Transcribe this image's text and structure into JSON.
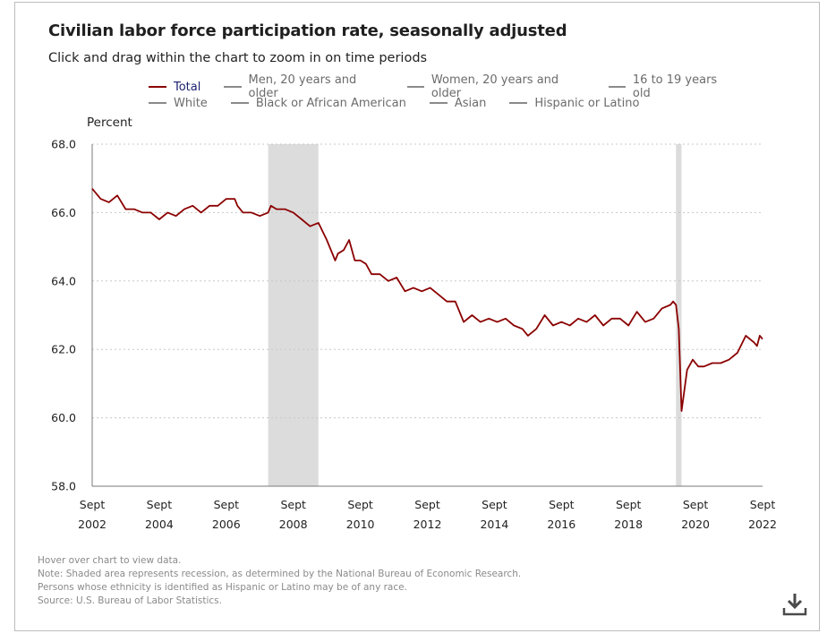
{
  "header": {
    "title": "Civilian labor force participation rate, seasonally adjusted",
    "subtitle": "Click and drag within the chart to zoom in on time periods"
  },
  "legend": {
    "items": [
      {
        "label": "Total",
        "active": true
      },
      {
        "label": "Men, 20 years and older",
        "active": false
      },
      {
        "label": "Women, 20 years and older",
        "active": false
      },
      {
        "label": "16 to 19 years old",
        "active": false
      },
      {
        "label": "White",
        "active": false
      },
      {
        "label": "Black or African American",
        "active": false
      },
      {
        "label": "Asian",
        "active": false
      },
      {
        "label": "Hispanic or Latino",
        "active": false
      }
    ]
  },
  "notes": {
    "hover": "Hover over chart to view data.",
    "shading": "Note: Shaded area represents recession, as determined by the National Bureau of Economic Research.",
    "ethnicity": "Persons whose ethnicity is identified as Hispanic or Latino may be of any race.",
    "source": "Source: U.S. Bureau of Labor Statistics."
  },
  "icons": {
    "download": "download-icon"
  },
  "colors": {
    "series": "#8b0000",
    "recession": "#dcdcdc",
    "grid": "#c8c8c8",
    "legend_active_text": "#1a1f6e"
  },
  "chart_data": {
    "type": "line",
    "title": "Civilian labor force participation rate, seasonally adjusted",
    "ylabel": "Percent",
    "ylim": [
      58.0,
      68.0
    ],
    "yticks": [
      "58.0",
      "60.0",
      "62.0",
      "64.0",
      "66.0",
      "68.0"
    ],
    "xlim": [
      "2002-09",
      "2022-09"
    ],
    "xticks": [
      {
        "month": "Sept",
        "year": "2002",
        "date": "2002-09"
      },
      {
        "month": "Sept",
        "year": "2004",
        "date": "2004-09"
      },
      {
        "month": "Sept",
        "year": "2006",
        "date": "2006-09"
      },
      {
        "month": "Sept",
        "year": "2008",
        "date": "2008-09"
      },
      {
        "month": "Sept",
        "year": "2010",
        "date": "2010-09"
      },
      {
        "month": "Sept",
        "year": "2012",
        "date": "2012-09"
      },
      {
        "month": "Sept",
        "year": "2014",
        "date": "2014-09"
      },
      {
        "month": "Sept",
        "year": "2016",
        "date": "2016-09"
      },
      {
        "month": "Sept",
        "year": "2018",
        "date": "2018-09"
      },
      {
        "month": "Sept",
        "year": "2020",
        "date": "2020-09"
      },
      {
        "month": "Sept",
        "year": "2022",
        "date": "2022-09"
      }
    ],
    "grid": true,
    "legend_position": "top",
    "recessions": [
      {
        "start": "2007-12",
        "end": "2009-06"
      },
      {
        "start": "2020-02",
        "end": "2020-04"
      }
    ],
    "series": [
      {
        "name": "Total",
        "points": [
          [
            "2002-09",
            66.7
          ],
          [
            "2002-12",
            66.4
          ],
          [
            "2003-03",
            66.3
          ],
          [
            "2003-06",
            66.5
          ],
          [
            "2003-09",
            66.1
          ],
          [
            "2003-12",
            66.1
          ],
          [
            "2004-03",
            66.0
          ],
          [
            "2004-06",
            66.0
          ],
          [
            "2004-09",
            65.8
          ],
          [
            "2004-12",
            66.0
          ],
          [
            "2005-03",
            65.9
          ],
          [
            "2005-06",
            66.1
          ],
          [
            "2005-09",
            66.2
          ],
          [
            "2005-12",
            66.0
          ],
          [
            "2006-03",
            66.2
          ],
          [
            "2006-06",
            66.2
          ],
          [
            "2006-09",
            66.4
          ],
          [
            "2006-12",
            66.4
          ],
          [
            "2007-01",
            66.2
          ],
          [
            "2007-03",
            66.0
          ],
          [
            "2007-06",
            66.0
          ],
          [
            "2007-09",
            65.9
          ],
          [
            "2007-12",
            66.0
          ],
          [
            "2008-01",
            66.2
          ],
          [
            "2008-03",
            66.1
          ],
          [
            "2008-06",
            66.1
          ],
          [
            "2008-09",
            66.0
          ],
          [
            "2008-12",
            65.8
          ],
          [
            "2009-03",
            65.6
          ],
          [
            "2009-06",
            65.7
          ],
          [
            "2009-09",
            65.2
          ],
          [
            "2009-12",
            64.6
          ],
          [
            "2010-01",
            64.8
          ],
          [
            "2010-03",
            64.9
          ],
          [
            "2010-05",
            65.2
          ],
          [
            "2010-07",
            64.6
          ],
          [
            "2010-09",
            64.6
          ],
          [
            "2010-11",
            64.5
          ],
          [
            "2011-01",
            64.2
          ],
          [
            "2011-04",
            64.2
          ],
          [
            "2011-07",
            64.0
          ],
          [
            "2011-10",
            64.1
          ],
          [
            "2012-01",
            63.7
          ],
          [
            "2012-04",
            63.8
          ],
          [
            "2012-07",
            63.7
          ],
          [
            "2012-10",
            63.8
          ],
          [
            "2013-01",
            63.6
          ],
          [
            "2013-04",
            63.4
          ],
          [
            "2013-07",
            63.4
          ],
          [
            "2013-10",
            62.8
          ],
          [
            "2014-01",
            63.0
          ],
          [
            "2014-04",
            62.8
          ],
          [
            "2014-07",
            62.9
          ],
          [
            "2014-10",
            62.8
          ],
          [
            "2015-01",
            62.9
          ],
          [
            "2015-04",
            62.7
          ],
          [
            "2015-07",
            62.6
          ],
          [
            "2015-09",
            62.4
          ],
          [
            "2015-12",
            62.6
          ],
          [
            "2016-03",
            63.0
          ],
          [
            "2016-06",
            62.7
          ],
          [
            "2016-09",
            62.8
          ],
          [
            "2016-12",
            62.7
          ],
          [
            "2017-03",
            62.9
          ],
          [
            "2017-06",
            62.8
          ],
          [
            "2017-09",
            63.0
          ],
          [
            "2017-12",
            62.7
          ],
          [
            "2018-03",
            62.9
          ],
          [
            "2018-06",
            62.9
          ],
          [
            "2018-09",
            62.7
          ],
          [
            "2018-12",
            63.1
          ],
          [
            "2019-03",
            62.8
          ],
          [
            "2019-06",
            62.9
          ],
          [
            "2019-09",
            63.2
          ],
          [
            "2019-12",
            63.3
          ],
          [
            "2020-01",
            63.4
          ],
          [
            "2020-02",
            63.3
          ],
          [
            "2020-03",
            62.6
          ],
          [
            "2020-04",
            60.2
          ],
          [
            "2020-06",
            61.4
          ],
          [
            "2020-08",
            61.7
          ],
          [
            "2020-10",
            61.5
          ],
          [
            "2020-12",
            61.5
          ],
          [
            "2021-03",
            61.6
          ],
          [
            "2021-06",
            61.6
          ],
          [
            "2021-09",
            61.7
          ],
          [
            "2021-12",
            61.9
          ],
          [
            "2022-03",
            62.4
          ],
          [
            "2022-06",
            62.2
          ],
          [
            "2022-07",
            62.1
          ],
          [
            "2022-08",
            62.4
          ],
          [
            "2022-09",
            62.3
          ]
        ]
      }
    ]
  }
}
